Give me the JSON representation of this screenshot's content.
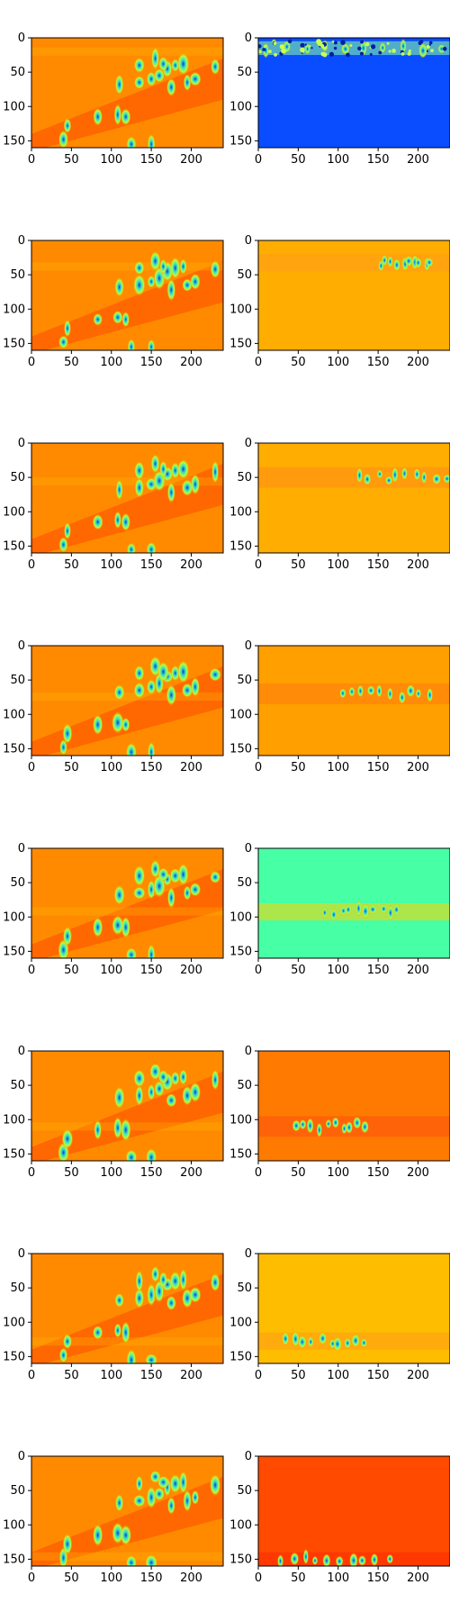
{
  "chart_data": {
    "type": "heatmap",
    "layout": "grid of 8 rows x 2 columns of image panels",
    "colormap": "jet",
    "xlim": [
      0,
      240
    ],
    "ylim": [
      160,
      0
    ],
    "x_ticks": [
      "0",
      "50",
      "100",
      "150",
      "200"
    ],
    "y_ticks": [
      "0",
      "50",
      "100",
      "150"
    ],
    "panels": [
      {
        "row": 1,
        "col": 1,
        "background": "orange-red",
        "features": "blobs along diagonal band"
      },
      {
        "row": 1,
        "col": 2,
        "background": "blue",
        "highlight_band_y": [
          5,
          25
        ],
        "highlight_x": [
          0,
          240
        ]
      },
      {
        "row": 2,
        "col": 1,
        "background": "orange-red",
        "features": "blobs along diagonal band"
      },
      {
        "row": 2,
        "col": 2,
        "background": "orange",
        "highlight_band_y": [
          20,
          45
        ],
        "highlight_x": [
          150,
          220
        ]
      },
      {
        "row": 3,
        "col": 1,
        "background": "orange-red",
        "features": "blobs along diagonal band"
      },
      {
        "row": 3,
        "col": 2,
        "background": "orange",
        "highlight_band_y": [
          35,
          65
        ],
        "highlight_x": [
          120,
          240
        ]
      },
      {
        "row": 4,
        "col": 1,
        "background": "orange-red",
        "features": "blobs along diagonal band"
      },
      {
        "row": 4,
        "col": 2,
        "background": "orange",
        "highlight_band_y": [
          55,
          85
        ],
        "highlight_x": [
          100,
          220
        ]
      },
      {
        "row": 5,
        "col": 1,
        "background": "orange-red",
        "features": "blobs along diagonal band"
      },
      {
        "row": 5,
        "col": 2,
        "background": "green",
        "highlight_band_y": [
          80,
          105
        ],
        "highlight_x": [
          80,
          180
        ]
      },
      {
        "row": 6,
        "col": 1,
        "background": "orange-red",
        "features": "blobs along diagonal band"
      },
      {
        "row": 6,
        "col": 2,
        "background": "orange",
        "highlight_band_y": [
          95,
          125
        ],
        "highlight_x": [
          40,
          140
        ]
      },
      {
        "row": 7,
        "col": 1,
        "background": "orange-red",
        "features": "blobs along diagonal band"
      },
      {
        "row": 7,
        "col": 2,
        "background": "yellow-orange",
        "highlight_band_y": [
          115,
          140
        ],
        "highlight_x": [
          30,
          140
        ]
      },
      {
        "row": 8,
        "col": 1,
        "background": "orange-red",
        "features": "blobs along diagonal band"
      },
      {
        "row": 8,
        "col": 2,
        "background": "red-orange",
        "highlight_band_y": [
          140,
          160
        ],
        "highlight_x": [
          20,
          170
        ]
      }
    ],
    "colors": {
      "left_base": "#ff8a00",
      "left_band": "#ff4a00",
      "blob_outer": "#b8ff3a",
      "blob_mid": "#38e0c8",
      "blob_core": "#0c3ad8",
      "right_bg": [
        "#0a4cff",
        "#ffad00",
        "#ffad00",
        "#ff9f00",
        "#47ffa5",
        "#ff7a00",
        "#ffbd00",
        "#ff4a00"
      ],
      "right_band": [
        "#8dffa0",
        "#ff9a1a",
        "#ff8c18",
        "#ff7a10",
        "#ffd200",
        "#ff5010",
        "#ff9a18",
        "#ff2a00"
      ]
    }
  }
}
